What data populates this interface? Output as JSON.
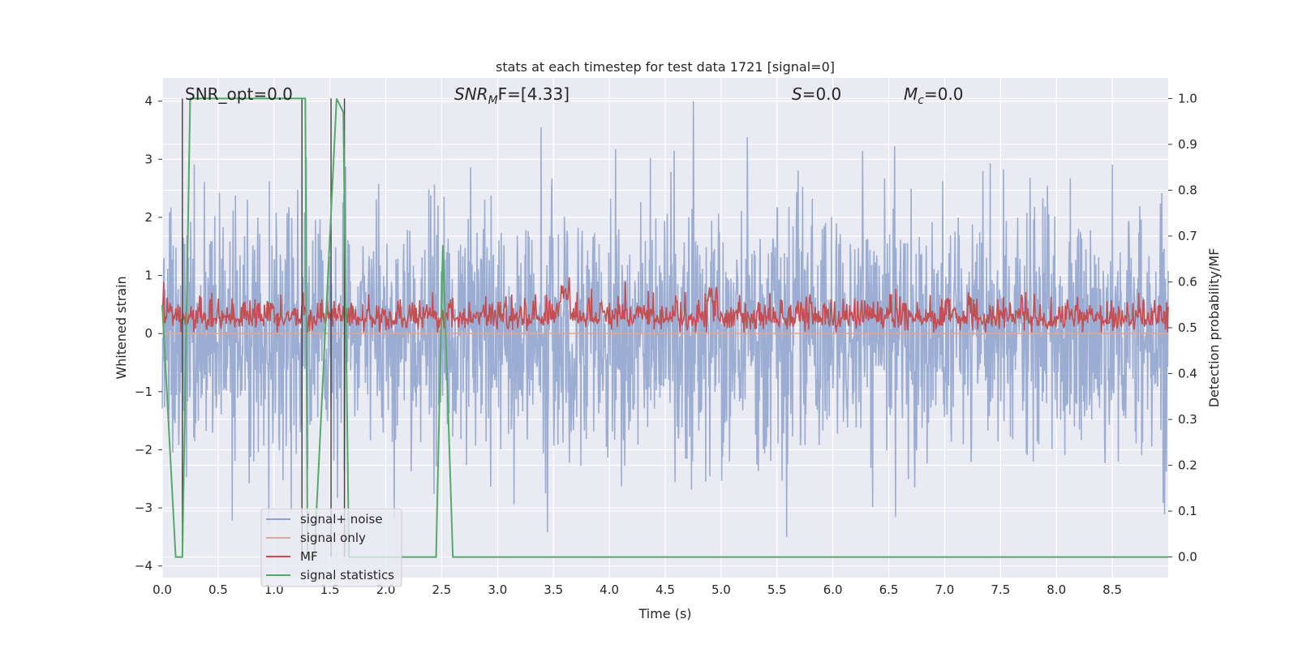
{
  "chart_data": {
    "type": "line",
    "title": "stats at each timestep for test data 1721 [signal=0]",
    "xlabel": "Time (s)",
    "ylabel": "Whitened strain",
    "ylabel_right": "Detection probability/MF",
    "xlim": [
      0.0,
      9.0
    ],
    "ylim": [
      -4.2,
      4.4
    ],
    "ylim_right": [
      -0.045,
      1.045
    ],
    "x_ticks": [
      "0.0",
      "0.5",
      "1.0",
      "1.5",
      "2.0",
      "2.5",
      "3.0",
      "3.5",
      "4.0",
      "4.5",
      "5.0",
      "5.5",
      "6.0",
      "6.5",
      "7.0",
      "7.5",
      "8.0",
      "8.5"
    ],
    "y_ticks": [
      "4",
      "3",
      "2",
      "1",
      "0",
      "−1",
      "−2",
      "−3",
      "−4"
    ],
    "y_ticks_right": [
      "1.0",
      "0.9",
      "0.8",
      "0.7",
      "0.6",
      "0.5",
      "0.4",
      "0.3",
      "0.2",
      "0.1",
      "0.0"
    ],
    "grid": true,
    "legend_placement": "lower-left",
    "annotations": {
      "snr_opt": "SNR_opt=0.0",
      "snr_mf_main": "SNR",
      "snr_mf_sub": "M",
      "snr_mf_rest": "F=[4.33]",
      "s_main": "S",
      "s_rest": "=0.0",
      "mc_main": "M",
      "mc_sub": "c",
      "mc_rest": "=0.0"
    },
    "series": [
      {
        "name": "signal+ noise",
        "color": "#8da2cc",
        "axis": "left",
        "description_values": "dense noise, roughly within [-3.7, 4.0]"
      },
      {
        "name": "signal only",
        "color": "#e8a58a",
        "axis": "left",
        "x": [
          0.0,
          9.0
        ],
        "y": [
          0.0,
          0.0
        ]
      },
      {
        "name": "MF",
        "color": "#c44e52",
        "axis": "left",
        "description_values": "dense trace between about 0 and 1.0"
      },
      {
        "name": "signal statistics",
        "color": "#55a868",
        "axis": "right",
        "x": [
          0.0,
          0.12,
          0.18,
          0.25,
          1.24,
          1.28,
          1.3,
          1.36,
          1.56,
          1.62,
          1.67,
          1.72,
          2.45,
          2.51,
          2.6,
          9.0
        ],
        "y": [
          0.55,
          0.0,
          0.0,
          1.0,
          1.0,
          1.0,
          0.0,
          0.0,
          1.0,
          0.97,
          0.0,
          0.0,
          0.0,
          0.68,
          0.0,
          0.0
        ]
      }
    ],
    "vlines": [
      0.18,
      1.25,
      1.51,
      1.63
    ]
  },
  "colors": {
    "plot_bg": "#eaeaf2",
    "grid": "#ffffff",
    "vline": "#404040"
  }
}
